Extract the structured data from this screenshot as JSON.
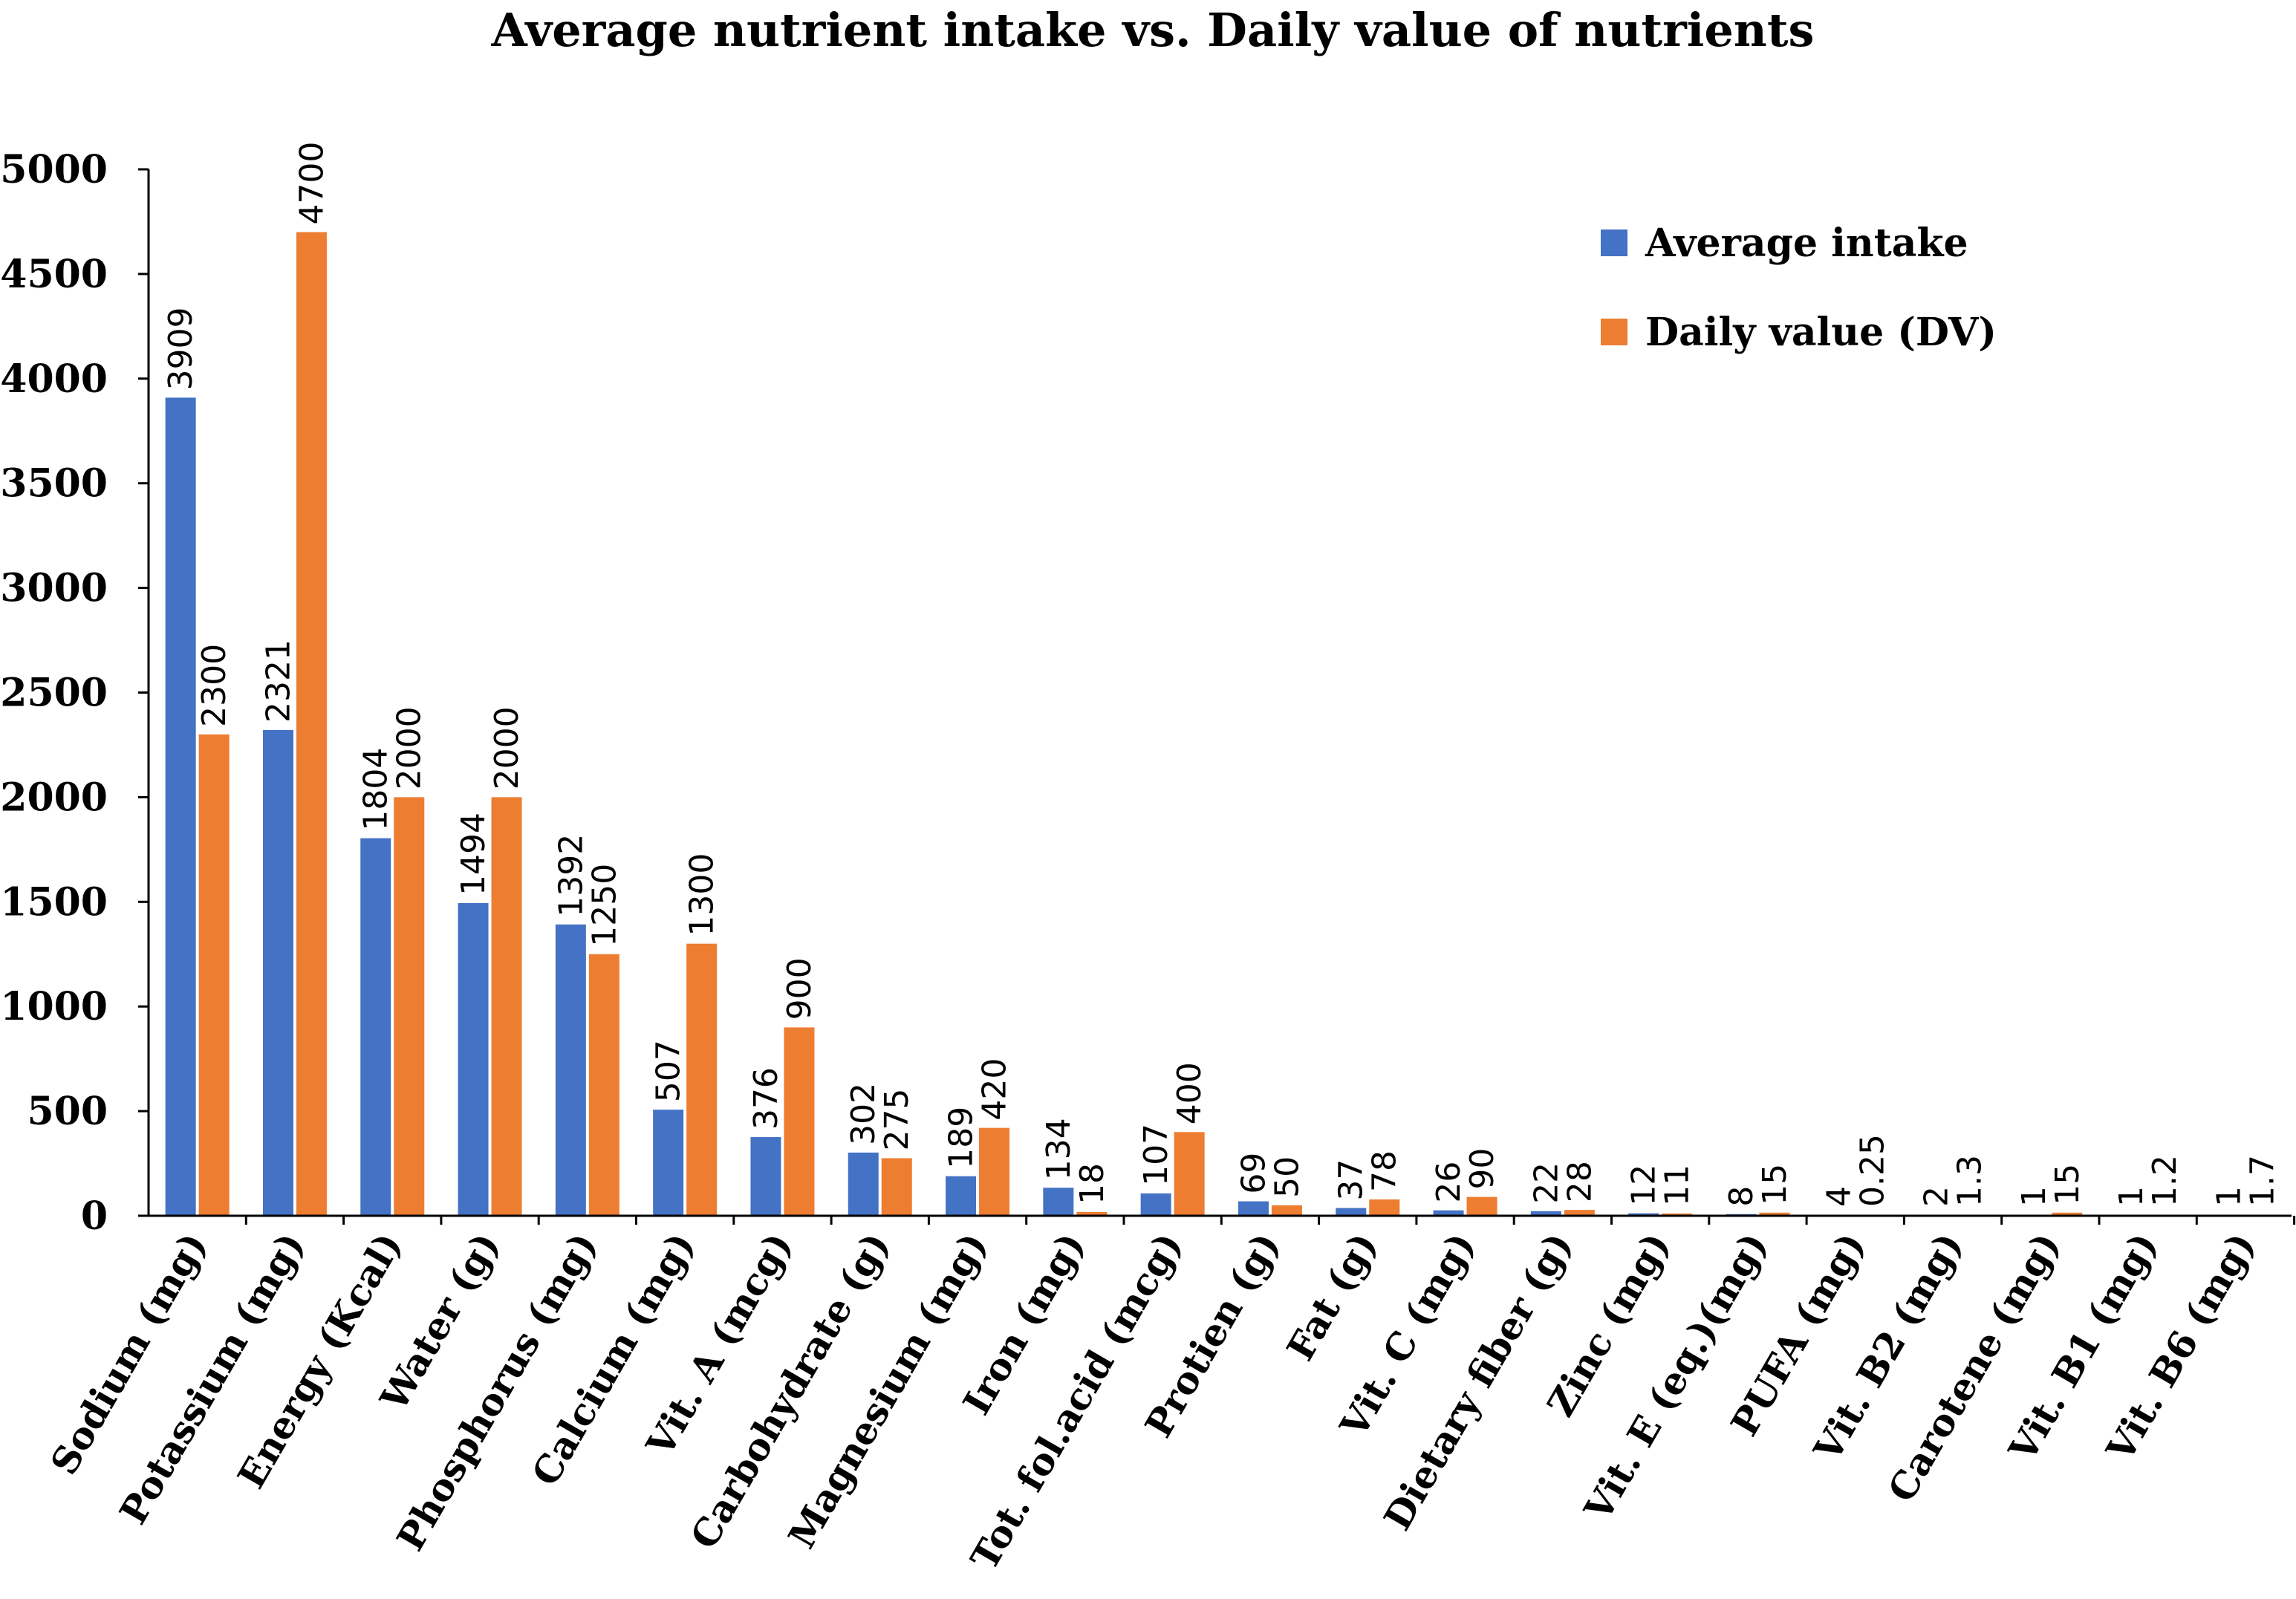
{
  "chart_data": {
    "type": "bar",
    "title": "Average nutrient intake vs. Daily value of nutrients",
    "xlabel": "",
    "ylabel": "",
    "ylim": [
      0,
      5000
    ],
    "yticks": [
      "0",
      "500",
      "1000",
      "1500",
      "2000",
      "2500",
      "3000",
      "3500",
      "4000",
      "4500",
      "5000"
    ],
    "legend_position": "top-right",
    "categories": [
      "Sodium (mg)",
      "Potassium (mg)",
      "Energy (Kcal)",
      "Water (g)",
      "Phosphorus (mg)",
      "Calcium (mg)",
      "Vit. A (mcg)",
      "Carbohydrate (g)",
      "Magnesium (mg)",
      "Iron (mg)",
      "Tot. fol.acid (mcg)",
      "Protien (g)",
      "Fat (g)",
      "Vit. C (mg)",
      "Dietary fiber (g)",
      "Zinc (mg)",
      "Vit. E (eq.)(mg)",
      "PUFA (mg)",
      "Vit. B2 (mg)",
      "Carotene (mg)",
      "Vit. B1 (mg)",
      "Vit. B6 (mg)"
    ],
    "series": [
      {
        "name": "Average intake",
        "color": "#4472C4",
        "values": [
          3909,
          2321,
          1804,
          1494,
          1392,
          507,
          376,
          302,
          189,
          134,
          107,
          69,
          37,
          26,
          22,
          12,
          8,
          4,
          2,
          1,
          1,
          1
        ],
        "labels": [
          "3909",
          "2321",
          "1804",
          "1494",
          "1392",
          "507",
          "376",
          "302",
          "189",
          "134",
          "107",
          "69",
          "37",
          "26",
          "22",
          "12",
          "8",
          "4",
          "2",
          "1",
          "1",
          "1"
        ]
      },
      {
        "name": "Daily value (DV)",
        "color": "#ED7D31",
        "values": [
          2300,
          4700,
          2000,
          2000,
          1250,
          1300,
          900,
          275,
          420,
          18,
          400,
          50,
          78,
          90,
          28,
          11,
          15,
          0.25,
          1.3,
          15,
          1.2,
          1.7
        ],
        "labels": [
          "2300",
          "4700",
          "2000",
          "2000",
          "1250",
          "1300",
          "900",
          "275",
          "420",
          "18",
          "400",
          "50",
          "78",
          "90",
          "28",
          "11",
          "15",
          "0.25",
          "1.3",
          "15",
          "1.2",
          "1.7"
        ]
      }
    ]
  }
}
